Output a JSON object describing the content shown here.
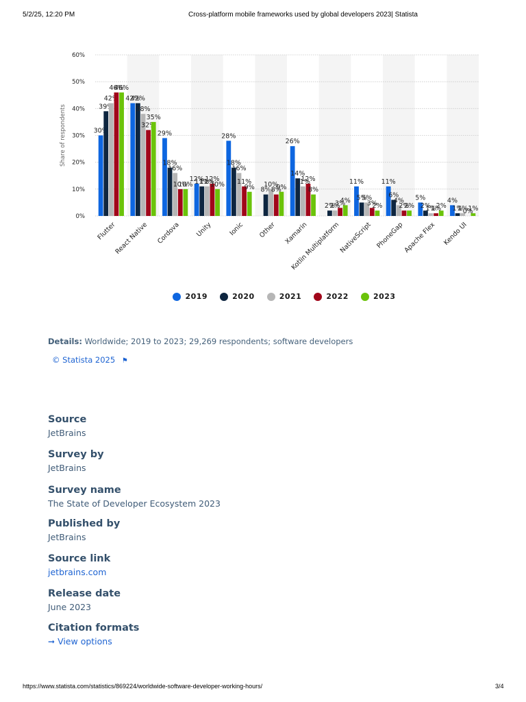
{
  "print_header": {
    "date": "5/2/25, 12:20 PM",
    "title": "Cross-platform mobile frameworks used by global developers 2023| Statista"
  },
  "print_footer": {
    "url": "https://www.statista.com/statistics/869224/worldwide-software-developer-working-hours/",
    "page": "3/4"
  },
  "colors": {
    "2019": "#0e66e0",
    "2020": "#0e2640",
    "2021": "#b6b6b6",
    "2022": "#a1061a",
    "2023": "#6bc30a",
    "band": "#f4f4f4",
    "grid": "#c8c8c8"
  },
  "chart_data": {
    "type": "bar",
    "ylabel": "Share of respondents",
    "ylim": [
      0,
      60
    ],
    "yticks": [
      "0%",
      "10%",
      "20%",
      "30%",
      "40%",
      "50%",
      "60%"
    ],
    "categories": [
      "Flutter",
      "React Native",
      "Cordova",
      "Unity",
      "Ionic",
      "Other",
      "Xamarin",
      "Kotlin Multiplatform",
      "NativeScript",
      "PhoneGap",
      "Apache Flex",
      "Kendo UI"
    ],
    "series": [
      {
        "name": "2019",
        "values": [
          30,
          42,
          29,
          12,
          28,
          null,
          26,
          null,
          11,
          11,
          5,
          4
        ]
      },
      {
        "name": "2020",
        "values": [
          39,
          42,
          18,
          11,
          18,
          8,
          14,
          2,
          5,
          6,
          2,
          1
        ]
      },
      {
        "name": "2021",
        "values": [
          42,
          38,
          16,
          11,
          16,
          10,
          11,
          2,
          5,
          4,
          1,
          1
        ]
      },
      {
        "name": "2022",
        "values": [
          46,
          32,
          10,
          12,
          11,
          8,
          12,
          3,
          3,
          2,
          1,
          0
        ]
      },
      {
        "name": "2023",
        "values": [
          46,
          35,
          10,
          10,
          9,
          9,
          8,
          4,
          2,
          2,
          2,
          1
        ]
      }
    ],
    "grid": true,
    "legend_position": "bottom"
  },
  "details": {
    "label": "Details:",
    "text": "Worldwide; 2019 to 2023; 29,269 respondents; software developers"
  },
  "copyright": "© Statista 2025",
  "meta": [
    {
      "label": "Source",
      "value": "JetBrains"
    },
    {
      "label": "Survey by",
      "value": "JetBrains"
    },
    {
      "label": "Survey name",
      "value": "The State of Developer Ecosystem 2023"
    },
    {
      "label": "Published by",
      "value": "JetBrains"
    },
    {
      "label": "Source link",
      "value": "jetbrains.com"
    },
    {
      "label": "Release date",
      "value": "June 2023"
    },
    {
      "label": "Citation formats",
      "value": "View options"
    }
  ]
}
